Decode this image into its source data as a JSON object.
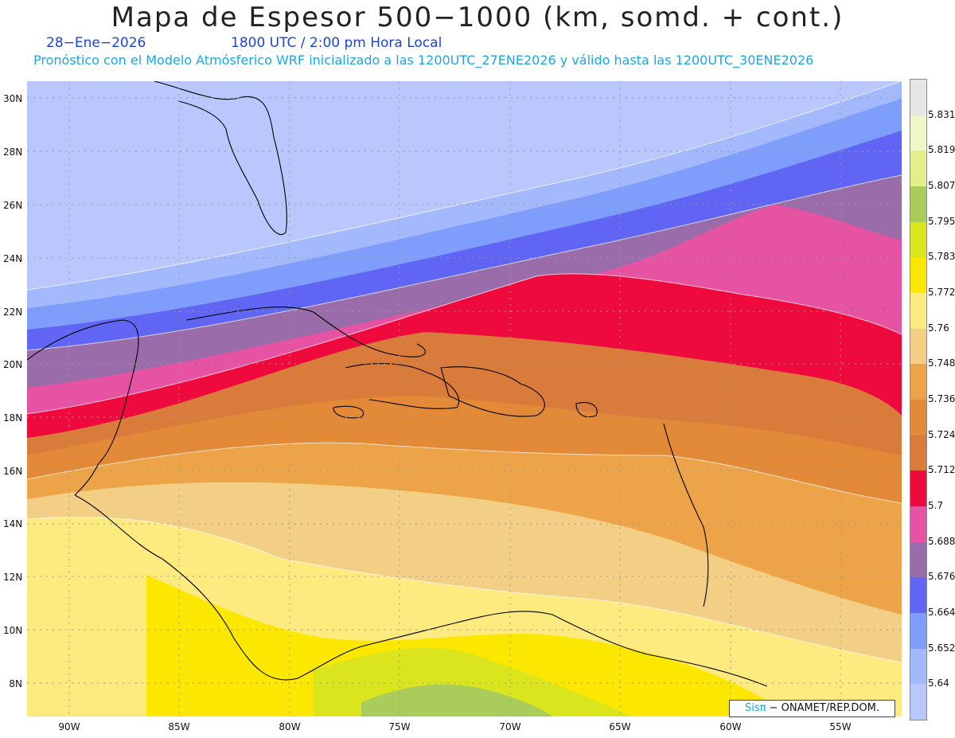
{
  "header": {
    "title": "Mapa de Espesor 500−1000 (km, somd. + cont.)",
    "date": "28−Ene−2026",
    "time": "1800 UTC / 2:00 pm Hora Local",
    "description": "Pronóstico con el Modelo Atmósferico WRF inicializado a las 1200UTC_27ENE2026 y válido hasta las  1200UTC_30ENE2026"
  },
  "axes": {
    "lat_labels": [
      "30N",
      "28N",
      "26N",
      "24N",
      "22N",
      "20N",
      "18N",
      "16N",
      "14N",
      "12N",
      "10N",
      "8N"
    ],
    "lon_labels": [
      "90W",
      "85W",
      "80W",
      "75W",
      "70W",
      "65W",
      "60W",
      "55W"
    ]
  },
  "colorbar": {
    "labels": [
      "5.831",
      "5.819",
      "5.807",
      "5.795",
      "5.783",
      "5.772",
      "5.76",
      "5.748",
      "5.736",
      "5.724",
      "5.712",
      "5.7",
      "5.688",
      "5.676",
      "5.664",
      "5.652",
      "5.64"
    ],
    "colors_top_to_bottom": [
      "#e6e6e6",
      "#f0f6c8",
      "#e3f08a",
      "#a9cc5a",
      "#dbe51e",
      "#fbe700",
      "#fdeb80",
      "#f3cf85",
      "#eda448",
      "#e28a38",
      "#d97b3a",
      "#ef0a3e",
      "#e653a3",
      "#9a6ca9",
      "#6065f3",
      "#7f9dfa",
      "#a4b9fb",
      "#b9c7fc"
    ]
  },
  "credit": {
    "logo": "Sisπ",
    "text": "− ONAMET/REP.DOM."
  },
  "colors": {
    "ocean_cold": "#b9c7fc",
    "mid_red": "#ef0a3e",
    "warm_yellow": "#fbe700"
  }
}
